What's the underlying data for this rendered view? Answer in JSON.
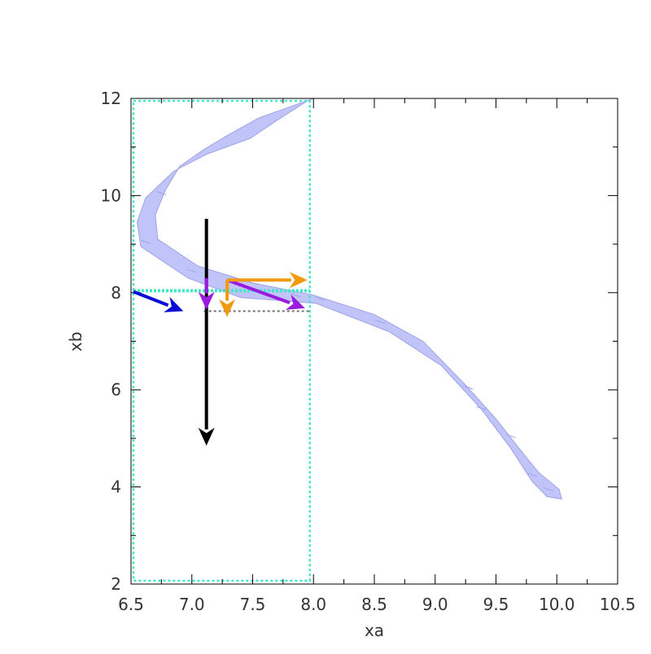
{
  "chart_data": {
    "type": "area",
    "xlabel": "xa",
    "ylabel": "xb",
    "xlim": [
      6.5,
      10.5
    ],
    "ylim": [
      2,
      12
    ],
    "xticks": [
      "6.5",
      "7.0",
      "7.5",
      "8.0",
      "8.5",
      "9.0",
      "9.5",
      "10.0",
      "10.5"
    ],
    "yticks": [
      "2",
      "4",
      "6",
      "8",
      "10",
      "12"
    ],
    "grid": false,
    "band": {
      "color": "#c0c4f8",
      "edge_color": "#9ea3e8",
      "upper": [
        [
          8.0,
          12.0
        ],
        [
          7.55,
          11.6
        ],
        [
          7.3,
          11.25
        ],
        [
          7.1,
          10.95
        ],
        [
          6.9,
          10.6
        ],
        [
          6.78,
          10.1
        ],
        [
          6.7,
          9.6
        ],
        [
          6.72,
          9.1
        ],
        [
          7.05,
          8.55
        ],
        [
          7.5,
          8.2
        ],
        [
          8.0,
          7.95
        ],
        [
          8.5,
          7.55
        ],
        [
          8.9,
          7.0
        ],
        [
          9.25,
          6.1
        ],
        [
          9.5,
          5.4
        ],
        [
          9.72,
          4.7
        ],
        [
          9.85,
          4.3
        ],
        [
          10.02,
          3.95
        ],
        [
          10.04,
          3.75
        ]
      ],
      "lower": [
        [
          10.04,
          3.75
        ],
        [
          9.92,
          3.8
        ],
        [
          9.8,
          4.1
        ],
        [
          9.62,
          4.8
        ],
        [
          9.38,
          5.6
        ],
        [
          9.05,
          6.5
        ],
        [
          8.62,
          7.2
        ],
        [
          8.02,
          7.78
        ],
        [
          7.4,
          7.9
        ],
        [
          6.97,
          8.3
        ],
        [
          6.58,
          8.95
        ],
        [
          6.55,
          9.45
        ],
        [
          6.62,
          9.95
        ],
        [
          6.85,
          10.5
        ],
        [
          7.12,
          10.85
        ],
        [
          7.48,
          11.18
        ],
        [
          7.7,
          11.55
        ],
        [
          7.95,
          11.95
        ],
        [
          8.0,
          12.0
        ]
      ],
      "segment_marks": [
        [
          6.75,
          10.05
        ],
        [
          6.62,
          9.05
        ],
        [
          7.0,
          8.45
        ],
        [
          7.85,
          7.95
        ],
        [
          8.05,
          7.88
        ],
        [
          8.55,
          7.4
        ],
        [
          9.27,
          6.05
        ],
        [
          9.38,
          5.62
        ],
        [
          9.62,
          5.05
        ],
        [
          9.8,
          4.25
        ],
        [
          9.93,
          3.95
        ]
      ]
    },
    "rectangles": [
      {
        "x0": 6.52,
        "y0": 2.07,
        "x1": 7.97,
        "y1": 11.95,
        "color": "#40e8c8",
        "style": "dotted"
      }
    ],
    "lines": [
      {
        "x0": 6.52,
        "y0": 8.04,
        "x1": 7.97,
        "y1": 8.04,
        "color": "#40e8c8",
        "style": "dotted",
        "width": 4
      },
      {
        "x0": 7.1,
        "y0": 7.62,
        "x1": 7.97,
        "y1": 7.62,
        "color": "#707070",
        "style": "dotted",
        "width": 2
      }
    ],
    "arrows": [
      {
        "x0": 6.52,
        "y0": 8.02,
        "x1": 6.93,
        "y1": 7.62,
        "color": "#0a0ad8"
      },
      {
        "x0": 7.12,
        "y0": 9.52,
        "x1": 7.12,
        "y1": 4.85,
        "color": "#000000"
      },
      {
        "x0": 7.12,
        "y0": 8.3,
        "x1": 7.12,
        "y1": 7.65,
        "color": "#9a1ae0"
      },
      {
        "x0": 7.29,
        "y0": 8.26,
        "x1": 7.93,
        "y1": 7.68,
        "color": "#9a1ae0"
      },
      {
        "x0": 7.29,
        "y0": 8.26,
        "x1": 7.29,
        "y1": 7.5,
        "color": "#f29a0e"
      },
      {
        "x0": 7.29,
        "y0": 8.26,
        "x1": 7.95,
        "y1": 8.26,
        "color": "#f29a0e"
      }
    ]
  }
}
